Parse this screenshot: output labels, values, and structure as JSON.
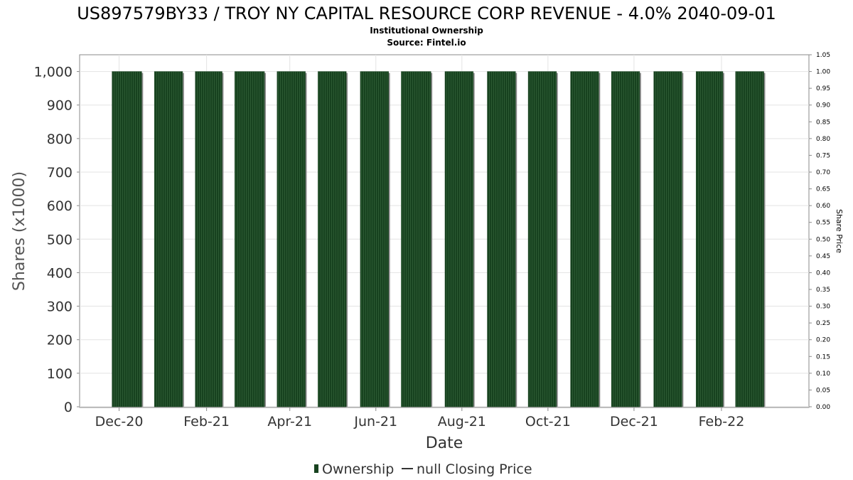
{
  "chart_data": {
    "type": "bar",
    "title": "US897579BY33 / TROY NY CAPITAL RESOURCE CORP REVENUE - 4.0% 2040-09-01",
    "subtitle": "Institutional Ownership",
    "source": "Source: Fintel.io",
    "xlabel": "Date",
    "ylabel": "Shares (x1000)",
    "y2label": "Share Price",
    "ylim": [
      0,
      1050
    ],
    "y2lim": [
      0,
      1.05
    ],
    "y_ticks": [
      "0",
      "100",
      "200",
      "300",
      "400",
      "500",
      "600",
      "700",
      "800",
      "900",
      "1,000"
    ],
    "y_tick_values": [
      0,
      100,
      200,
      300,
      400,
      500,
      600,
      700,
      800,
      900,
      1000
    ],
    "y2_ticks": [
      "0.00",
      "0.05",
      "0.10",
      "0.15",
      "0.20",
      "0.25",
      "0.30",
      "0.35",
      "0.40",
      "0.45",
      "0.50",
      "0.55",
      "0.60",
      "0.65",
      "0.70",
      "0.75",
      "0.80",
      "0.85",
      "0.90",
      "0.95",
      "1.00",
      "1.05"
    ],
    "y2_tick_values": [
      0,
      0.05,
      0.1,
      0.15,
      0.2,
      0.25,
      0.3,
      0.35,
      0.4,
      0.45,
      0.5,
      0.55,
      0.6,
      0.65,
      0.7,
      0.75,
      0.8,
      0.85,
      0.9,
      0.95,
      1.0,
      1.05
    ],
    "x_tick_labels": [
      "Dec-20",
      "Feb-21",
      "Apr-21",
      "Jun-21",
      "Aug-21",
      "Oct-21",
      "Dec-21",
      "Feb-22"
    ],
    "x_tick_dates": [
      "2020-12-01",
      "2021-02-01",
      "2021-04-01",
      "2021-06-01",
      "2021-08-01",
      "2021-10-01",
      "2021-12-01",
      "2022-02-01"
    ],
    "x_range": [
      "2020-11-03",
      "2022-04-04"
    ],
    "series": [
      {
        "name": "Ownership",
        "kind": "bar",
        "bars": [
          {
            "start": "2020-11-26",
            "end": "2020-12-17",
            "value": 1000
          },
          {
            "start": "2020-12-26",
            "end": "2021-01-15",
            "value": 1000
          },
          {
            "start": "2021-01-24",
            "end": "2021-02-12",
            "value": 1000
          },
          {
            "start": "2021-02-21",
            "end": "2021-03-14",
            "value": 1000
          },
          {
            "start": "2021-03-23",
            "end": "2021-04-12",
            "value": 1000
          },
          {
            "start": "2021-04-21",
            "end": "2021-05-11",
            "value": 1000
          },
          {
            "start": "2021-05-21",
            "end": "2021-06-10",
            "value": 1000
          },
          {
            "start": "2021-06-19",
            "end": "2021-07-10",
            "value": 1000
          },
          {
            "start": "2021-07-20",
            "end": "2021-08-09",
            "value": 1000
          },
          {
            "start": "2021-08-19",
            "end": "2021-09-08",
            "value": 1000
          },
          {
            "start": "2021-09-17",
            "end": "2021-10-07",
            "value": 1000
          },
          {
            "start": "2021-10-17",
            "end": "2021-11-06",
            "value": 1000
          },
          {
            "start": "2021-11-15",
            "end": "2021-12-05",
            "value": 1000
          },
          {
            "start": "2021-12-15",
            "end": "2022-01-04",
            "value": 1000
          },
          {
            "start": "2022-01-14",
            "end": "2022-02-02",
            "value": 1000
          },
          {
            "start": "2022-02-11",
            "end": "2022-03-03",
            "value": 1000
          }
        ]
      },
      {
        "name": "null Closing Price",
        "kind": "line",
        "values": []
      }
    ],
    "legend": {
      "position": "bottom-center",
      "items": [
        "Ownership",
        "null Closing Price"
      ]
    },
    "grid": true
  },
  "colors": {
    "bar": "#17421f",
    "bar_stripe": "#2c5a33",
    "bar_shadow": "#8a8a8a",
    "grid": "#e3e3e3",
    "axis": "#8a8a8a",
    "text": "#000000",
    "axis_text": "#333333",
    "plot_bg": "#ffffff"
  }
}
